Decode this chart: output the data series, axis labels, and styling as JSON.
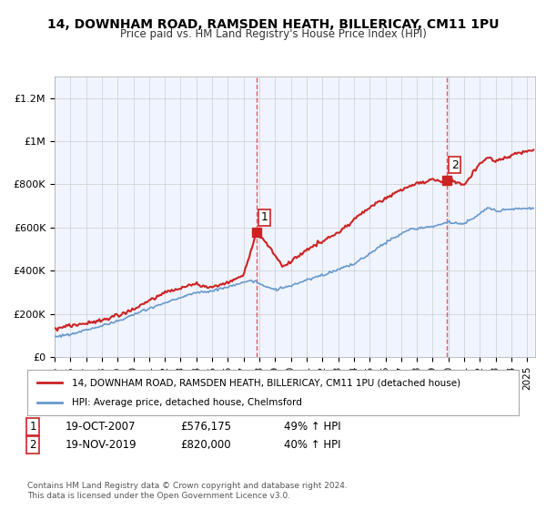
{
  "title_line1": "14, DOWNHAM ROAD, RAMSDEN HEATH, BILLERICAY, CM11 1PU",
  "title_line2": "Price paid vs. HM Land Registry's House Price Index (HPI)",
  "ylabel_ticks": [
    "£0",
    "£200K",
    "£400K",
    "£600K",
    "£800K",
    "£1M",
    "£1.2M"
  ],
  "ytick_values": [
    0,
    200000,
    400000,
    600000,
    800000,
    1000000,
    1200000
  ],
  "ylim": [
    0,
    1300000
  ],
  "xlim_start": 1995.0,
  "xlim_end": 2025.5,
  "hpi_color": "#6699cc",
  "price_color": "#cc2222",
  "marker1_x": 2007.8,
  "marker1_y": 576175,
  "marker2_x": 2019.88,
  "marker2_y": 820000,
  "legend_line1": "14, DOWNHAM ROAD, RAMSDEN HEATH, BILLERICAY, CM11 1PU (detached house)",
  "legend_line2": "HPI: Average price, detached house, Chelmsford",
  "table_row1": [
    "1",
    "19-OCT-2007",
    "£576,175",
    "49% ↑ HPI"
  ],
  "table_row2": [
    "2",
    "19-NOV-2019",
    "£820,000",
    "40% ↑ HPI"
  ],
  "footnote": "Contains HM Land Registry data © Crown copyright and database right 2024.\nThis data is licensed under the Open Government Licence v3.0.",
  "background_color": "#f0f4ff",
  "plot_bg_color": "#ffffff",
  "grid_color": "#cccccc"
}
